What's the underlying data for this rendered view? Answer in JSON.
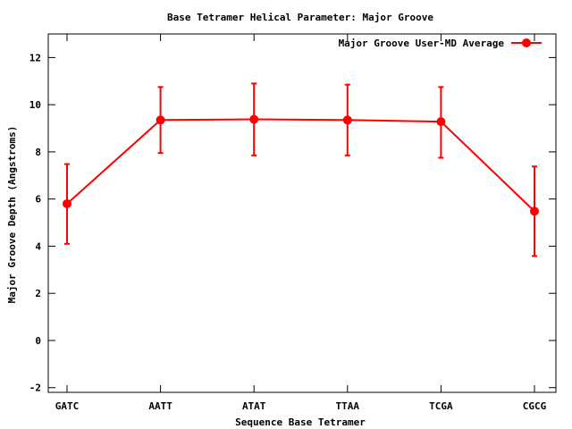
{
  "chart_data": {
    "type": "line",
    "title": "Base Tetramer Helical Parameter: Major Groove",
    "xlabel": "Sequence Base Tetramer",
    "ylabel": "Major Groove Depth (Angstroms)",
    "categories": [
      "GATC",
      "AATT",
      "ATAT",
      "TTAA",
      "TCGA",
      "CGCG"
    ],
    "ylim": [
      -2.2,
      13
    ],
    "yticks": [
      -2,
      0,
      2,
      4,
      6,
      8,
      10,
      12
    ],
    "grid": false,
    "legend": "top-right",
    "series": [
      {
        "name": "Major Groove User-MD Average",
        "color": "#ff0000",
        "values": [
          5.8,
          9.35,
          9.38,
          9.35,
          9.28,
          5.48
        ],
        "err_low": [
          4.1,
          7.95,
          7.85,
          7.85,
          7.75,
          3.58
        ],
        "err_high": [
          7.48,
          10.75,
          10.9,
          10.85,
          10.75,
          7.38
        ]
      }
    ]
  }
}
